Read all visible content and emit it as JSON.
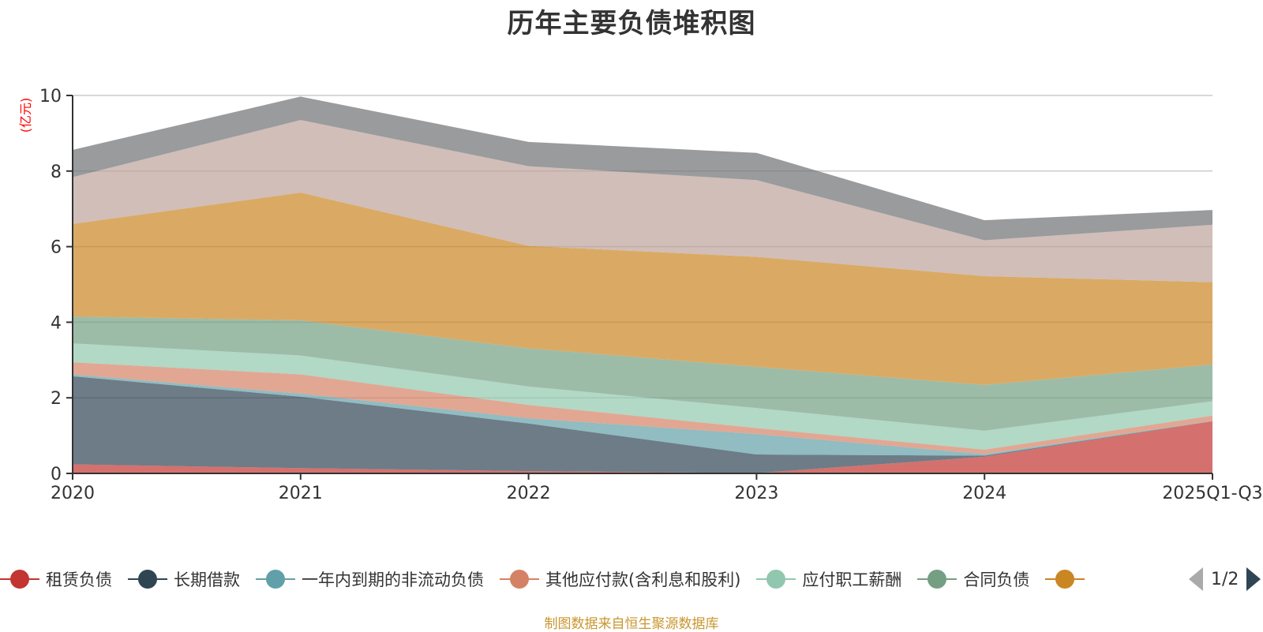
{
  "chart_data": {
    "type": "area",
    "stacked": true,
    "title": "历年主要负债堆积图",
    "xlabel": "",
    "ylabel": "(亿元)",
    "ylim": [
      0,
      10
    ],
    "yticks": [
      0,
      2,
      4,
      6,
      8,
      10
    ],
    "grid": true,
    "categories": [
      "2020",
      "2021",
      "2022",
      "2023",
      "2024",
      "2025Q1-Q3"
    ],
    "series": [
      {
        "name": "租赁负债",
        "color": "#c23531",
        "values": [
          0.24,
          0.14,
          0.06,
          0.01,
          0.44,
          1.38
        ]
      },
      {
        "name": "长期借款",
        "color": "#2f4554",
        "values": [
          2.33,
          1.89,
          1.26,
          0.49,
          0.03,
          0.0
        ]
      },
      {
        "name": "一年内到期的非流动负债",
        "color": "#61a0a8",
        "values": [
          0.05,
          0.08,
          0.14,
          0.54,
          0.04,
          0.01
        ]
      },
      {
        "name": "其他应付款(含利息和股利)",
        "color": "#d48265",
        "values": [
          0.32,
          0.51,
          0.35,
          0.16,
          0.12,
          0.14
        ]
      },
      {
        "name": "应付职工薪酬",
        "color": "#91c7ae",
        "values": [
          0.5,
          0.5,
          0.49,
          0.53,
          0.5,
          0.38
        ]
      },
      {
        "name": "合同负债",
        "color": "#749f83",
        "values": [
          0.71,
          0.93,
          1.01,
          1.09,
          1.21,
          0.97
        ]
      },
      {
        "name": "",
        "color": "#ca8622",
        "values": [
          2.45,
          3.38,
          2.71,
          2.91,
          2.88,
          2.18
        ]
      },
      {
        "name": "",
        "color": "#bda29a",
        "values": [
          1.24,
          1.92,
          2.11,
          2.03,
          0.95,
          1.52
        ]
      },
      {
        "name": "",
        "color": "#6e7074",
        "values": [
          0.72,
          0.62,
          0.64,
          0.72,
          0.53,
          0.39
        ]
      }
    ],
    "legend_position": "bottom",
    "legend_page": "1/2"
  },
  "legend": {
    "items": [
      {
        "label": "租赁负债",
        "color": "#c23531"
      },
      {
        "label": "长期借款",
        "color": "#2f4554"
      },
      {
        "label": "一年内到期的非流动负债",
        "color": "#61a0a8"
      },
      {
        "label": "其他应付款(含利息和股利)",
        "color": "#d48265"
      },
      {
        "label": "应付职工薪酬",
        "color": "#91c7ae"
      },
      {
        "label": "合同负债",
        "color": "#749f83"
      },
      {
        "label": "",
        "color": "#ca8622"
      }
    ],
    "page_text": "1/2"
  },
  "footer": "制图数据来自恒生聚源数据库"
}
